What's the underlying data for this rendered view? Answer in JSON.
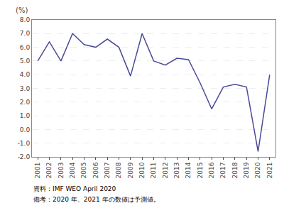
{
  "chart_data": {
    "type": "line",
    "x": [
      2001,
      2002,
      2003,
      2004,
      2005,
      2006,
      2007,
      2008,
      2009,
      2010,
      2011,
      2012,
      2013,
      2014,
      2015,
      2016,
      2017,
      2018,
      2019,
      2020,
      2021
    ],
    "values": [
      5.0,
      6.4,
      5.0,
      7.0,
      6.2,
      6.0,
      6.6,
      6.0,
      3.9,
      7.0,
      5.0,
      4.7,
      5.2,
      5.1,
      3.4,
      1.5,
      3.1,
      3.3,
      3.1,
      -1.6,
      4.0
    ],
    "color": "#4a4a9a",
    "ylabel": "(%)",
    "xlim": [
      2000.5,
      2021.5
    ],
    "xticks": [
      2001,
      2002,
      2003,
      2004,
      2005,
      2006,
      2007,
      2008,
      2009,
      2010,
      2011,
      2012,
      2013,
      2014,
      2015,
      2016,
      2017,
      2018,
      2019,
      2020,
      2021
    ],
    "ylim": [
      -2.0,
      8.0
    ],
    "yticks": [
      {
        "value": -2.0,
        "label": "-2.0"
      },
      {
        "value": -1.0,
        "label": "-1.0"
      },
      {
        "value": 0.0,
        "label": "0.0"
      },
      {
        "value": 1.0,
        "label": "1.0"
      },
      {
        "value": 2.0,
        "label": "2.0"
      },
      {
        "value": 3.0,
        "label": "3.0"
      },
      {
        "value": 4.0,
        "label": "4.0"
      },
      {
        "value": 5.0,
        "label": "5.0"
      },
      {
        "value": 6.0,
        "label": "6.0"
      },
      {
        "value": 7.0,
        "label": "7.0"
      },
      {
        "value": 8.0,
        "label": "8.0"
      }
    ],
    "grid": true,
    "annotations": [
      "資料：IMF WEO April 2020",
      "備考：2020 年、2021 年の数値は予測値。"
    ]
  }
}
